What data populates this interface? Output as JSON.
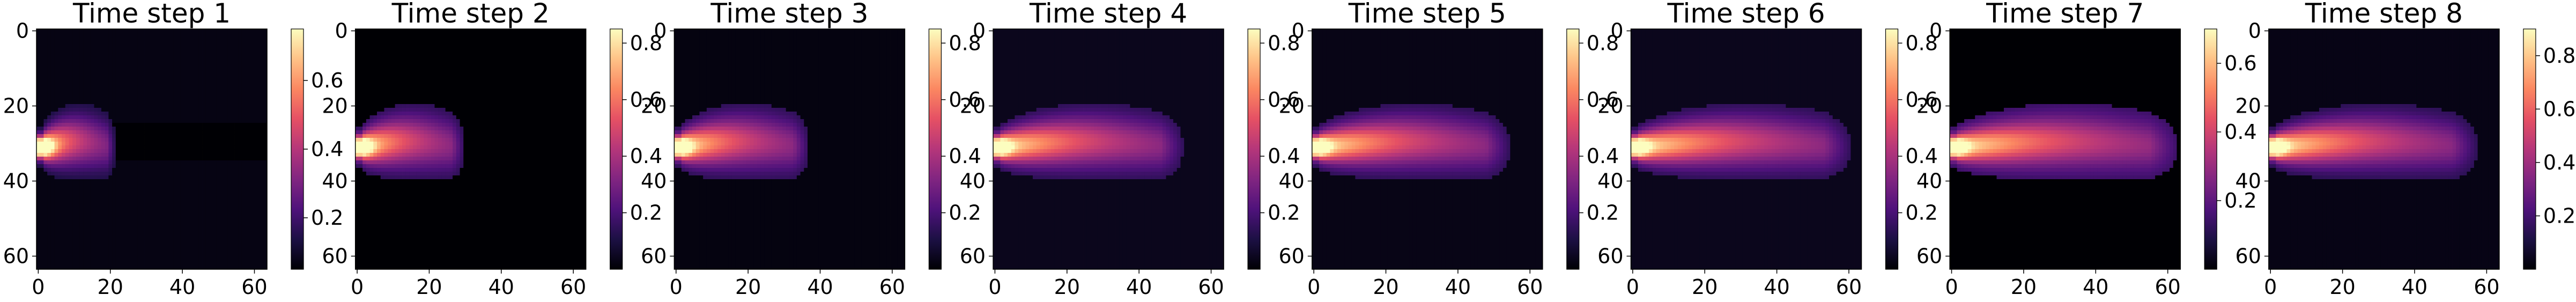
{
  "chart_data": [
    {
      "type": "heatmap",
      "title": "Time step 1",
      "colormap": "magma",
      "xticks": [
        "0",
        "20",
        "40",
        "60"
      ],
      "yticks": [
        "0",
        "20",
        "40",
        "60"
      ],
      "xlim": [
        0,
        63
      ],
      "ylim": [
        63,
        0
      ],
      "colorbar_ticks": [
        "0.2",
        "0.4",
        "0.6"
      ],
      "colorbar_range": [
        0.05,
        0.75
      ],
      "background_value": 0.07,
      "plume": {
        "source": [
          1,
          31
        ],
        "length": 20,
        "peak": 0.75,
        "wake": "dark band to x≈63"
      }
    },
    {
      "type": "heatmap",
      "title": "Time step 2",
      "colormap": "magma",
      "xticks": [
        "0",
        "20",
        "40",
        "60"
      ],
      "yticks": [
        "0",
        "20",
        "40",
        "60"
      ],
      "xlim": [
        0,
        63
      ],
      "ylim": [
        63,
        0
      ],
      "colorbar_ticks": [
        "0.2",
        "0.4",
        "0.6",
        "0.8"
      ],
      "colorbar_range": [
        0.0,
        0.85
      ],
      "background_value": 0.0,
      "plume": {
        "source": [
          1,
          31
        ],
        "length": 28,
        "peak": 0.85
      }
    },
    {
      "type": "heatmap",
      "title": "Time step 3",
      "colormap": "magma",
      "xticks": [
        "0",
        "20",
        "40",
        "60"
      ],
      "yticks": [
        "0",
        "20",
        "40",
        "60"
      ],
      "xlim": [
        0,
        63
      ],
      "ylim": [
        63,
        0
      ],
      "colorbar_ticks": [
        "0.2",
        "0.4",
        "0.6",
        "0.8"
      ],
      "colorbar_range": [
        0.0,
        0.85
      ],
      "background_value": 0.02,
      "plume": {
        "source": [
          1,
          31
        ],
        "length": 35,
        "peak": 0.85
      }
    },
    {
      "type": "heatmap",
      "title": "Time step 4",
      "colormap": "magma",
      "xticks": [
        "0",
        "20",
        "40",
        "60"
      ],
      "yticks": [
        "0",
        "20",
        "40",
        "60"
      ],
      "xlim": [
        0,
        63
      ],
      "ylim": [
        63,
        0
      ],
      "colorbar_ticks": [
        "0.2",
        "0.4",
        "0.6",
        "0.8"
      ],
      "colorbar_range": [
        0.0,
        0.85
      ],
      "background_value": 0.04,
      "plume": {
        "source": [
          1,
          31
        ],
        "length": 50,
        "peak": 0.85
      }
    },
    {
      "type": "heatmap",
      "title": "Time step 5",
      "colormap": "magma",
      "xticks": [
        "0",
        "20",
        "40",
        "60"
      ],
      "yticks": [
        "0",
        "20",
        "40",
        "60"
      ],
      "xlim": [
        0,
        63
      ],
      "ylim": [
        63,
        0
      ],
      "colorbar_ticks": [
        "0.2",
        "0.4",
        "0.6",
        "0.8"
      ],
      "colorbar_range": [
        0.0,
        0.85
      ],
      "background_value": 0.03,
      "plume": {
        "source": [
          1,
          31
        ],
        "length": 52,
        "peak": 0.85
      }
    },
    {
      "type": "heatmap",
      "title": "Time step 6",
      "colormap": "magma",
      "xticks": [
        "0",
        "20",
        "40",
        "60"
      ],
      "yticks": [
        "0",
        "20",
        "40",
        "60"
      ],
      "xlim": [
        0,
        63
      ],
      "ylim": [
        63,
        0
      ],
      "colorbar_ticks": [
        "0.2",
        "0.4",
        "0.6",
        "0.8"
      ],
      "colorbar_range": [
        0.0,
        0.85
      ],
      "background_value": 0.04,
      "plume": {
        "source": [
          1,
          31
        ],
        "length": 58,
        "peak": 0.85
      }
    },
    {
      "type": "heatmap",
      "title": "Time step 7",
      "colormap": "magma",
      "xticks": [
        "0",
        "20",
        "40",
        "60"
      ],
      "yticks": [
        "0",
        "20",
        "40",
        "60"
      ],
      "xlim": [
        0,
        63
      ],
      "ylim": [
        63,
        0
      ],
      "colorbar_ticks": [
        "0.2",
        "0.4",
        "0.6"
      ],
      "colorbar_range": [
        0.0,
        0.7
      ],
      "background_value": 0.0,
      "plume": {
        "source": [
          1,
          31
        ],
        "length": 60,
        "peak": 0.7
      }
    },
    {
      "type": "heatmap",
      "title": "Time step 8",
      "colormap": "magma",
      "xticks": [
        "0",
        "20",
        "40",
        "60"
      ],
      "yticks": [
        "0",
        "20",
        "40",
        "60"
      ],
      "xlim": [
        0,
        63
      ],
      "ylim": [
        63,
        0
      ],
      "colorbar_ticks": [
        "0.2",
        "0.4",
        "0.6",
        "0.8"
      ],
      "colorbar_range": [
        0.0,
        0.9
      ],
      "background_value": 0.03,
      "plume": {
        "source": [
          1,
          31
        ],
        "length": 55,
        "peak": 0.9
      }
    }
  ]
}
